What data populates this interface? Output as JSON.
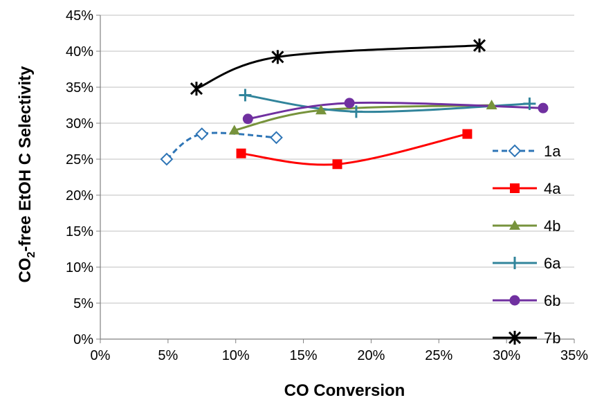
{
  "chart_data": {
    "type": "line",
    "title": "",
    "xlabel": "CO Conversion",
    "ylabel": {
      "prefix": "CO",
      "sub": "2",
      "suffix": "-free EtOH C Selectivity"
    },
    "xlim": [
      0,
      35
    ],
    "ylim": [
      0,
      45
    ],
    "xticks": [
      "0%",
      "5%",
      "10%",
      "15%",
      "20%",
      "25%",
      "30%",
      "35%"
    ],
    "yticks": [
      "0%",
      "5%",
      "10%",
      "15%",
      "20%",
      "25%",
      "30%",
      "35%",
      "40%",
      "45%"
    ],
    "legend_position": "right",
    "series": [
      {
        "name": "1a",
        "color": "#2E75B6",
        "marker": "diamond-open",
        "dashed": true,
        "points": [
          [
            4.9,
            25.0
          ],
          [
            7.5,
            28.5
          ],
          [
            13.0,
            28.0
          ]
        ]
      },
      {
        "name": "4a",
        "color": "#FF0000",
        "marker": "square",
        "dashed": false,
        "points": [
          [
            10.4,
            25.8
          ],
          [
            17.5,
            24.3
          ],
          [
            27.1,
            28.5
          ]
        ]
      },
      {
        "name": "4b",
        "color": "#77933C",
        "marker": "triangle",
        "dashed": false,
        "points": [
          [
            9.9,
            29.0
          ],
          [
            16.3,
            31.8
          ],
          [
            28.9,
            32.5
          ]
        ]
      },
      {
        "name": "6a",
        "color": "#31849B",
        "marker": "plus",
        "dashed": false,
        "points": [
          [
            10.7,
            33.9
          ],
          [
            18.9,
            31.6
          ],
          [
            31.7,
            32.7
          ]
        ]
      },
      {
        "name": "6b",
        "color": "#7030A0",
        "marker": "circle",
        "dashed": false,
        "points": [
          [
            10.9,
            30.6
          ],
          [
            18.4,
            32.8
          ],
          [
            32.7,
            32.1
          ]
        ]
      },
      {
        "name": "7b",
        "color": "#000000",
        "marker": "star",
        "dashed": false,
        "points": [
          [
            7.1,
            34.8
          ],
          [
            13.1,
            39.2
          ],
          [
            28.0,
            40.8
          ]
        ]
      }
    ]
  }
}
